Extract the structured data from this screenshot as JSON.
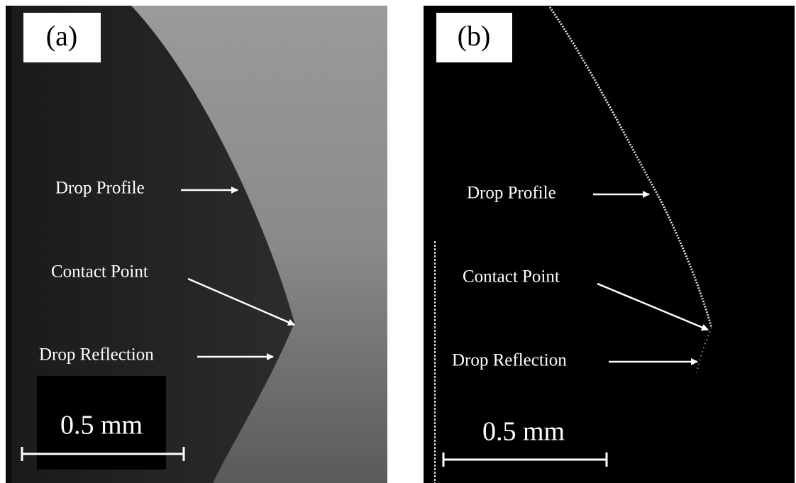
{
  "panels": [
    {
      "label": "(a)",
      "annotations": [
        "Drop Profile",
        "Contact Point",
        "Drop Reflection"
      ],
      "scale_bar": "0.5 mm"
    },
    {
      "label": "(b)",
      "annotations": [
        "Drop Profile",
        "Contact Point",
        "Drop Reflection"
      ],
      "scale_bar": "0.5 mm"
    }
  ]
}
